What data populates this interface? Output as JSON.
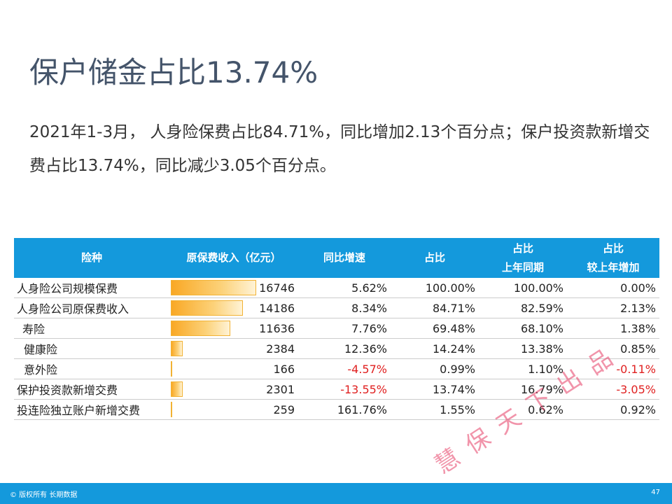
{
  "title": "保户储金占比13.74%",
  "summary": "2021年1-3月， 人身险保费占比84.71%，同比增加2.13个百分点；保户投资款新增交费占比13.74%，同比减少3.05个百分点。",
  "table": {
    "headers": {
      "type": "险种",
      "income": "原保费收入（亿元）",
      "growth": "同比增速",
      "share": "占比",
      "share_prev_line1": "占比",
      "share_prev_line2": "上年同期",
      "share_change_line1": "占比",
      "share_change_line2": "较上年增加"
    },
    "rows": [
      {
        "name": "人身险公司规模保费",
        "income": "16746",
        "income_value": 16746,
        "growth": "5.62%",
        "share": "100.00%",
        "share_prev": "100.00%",
        "share_change": "0.00%"
      },
      {
        "name": "人身险公司原保费收入",
        "income": "14186",
        "income_value": 14186,
        "growth": "8.34%",
        "share": "84.71%",
        "share_prev": "82.59%",
        "share_change": "2.13%"
      },
      {
        "name": "寿险",
        "income": "11636",
        "income_value": 11636,
        "growth": "7.76%",
        "share": "69.48%",
        "share_prev": "68.10%",
        "share_change": "1.38%"
      },
      {
        "name": "健康险",
        "income": "2384",
        "income_value": 2384,
        "growth": "12.36%",
        "share": "14.24%",
        "share_prev": "13.38%",
        "share_change": "0.85%"
      },
      {
        "name": "意外险",
        "income": "166",
        "income_value": 166,
        "growth": "-4.57%",
        "share": "0.99%",
        "share_prev": "1.10%",
        "share_change": "-0.11%"
      },
      {
        "name": "保护投资款新增交费",
        "income": "2301",
        "income_value": 2301,
        "growth": "-13.55%",
        "share": "13.74%",
        "share_prev": "16.79%",
        "share_change": "-3.05%"
      },
      {
        "name": "投连险独立账户新增交费",
        "income": "259",
        "income_value": 259,
        "growth": "161.76%",
        "share": "1.55%",
        "share_prev": "0.62%",
        "share_change": "0.92%"
      }
    ],
    "bar_max": 16746,
    "colors": {
      "header_bg": "#1499dc",
      "bar": "#f9a825",
      "negative": "#e02020"
    }
  },
  "footer": {
    "copyright": "© 版权所有 长期数据",
    "page_number": "47"
  },
  "watermark": "慧保天下出品"
}
